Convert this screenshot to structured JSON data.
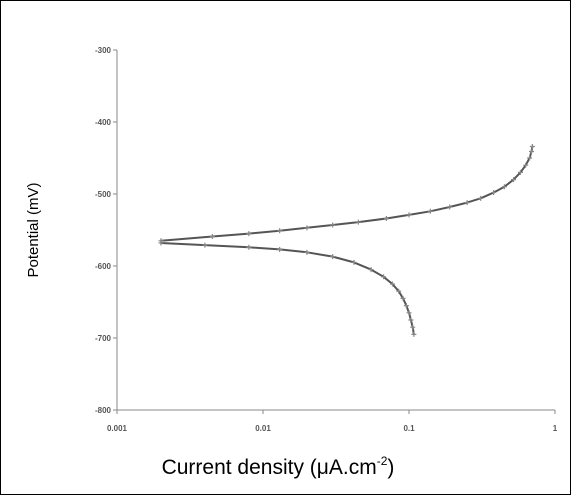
{
  "chart_data": {
    "type": "line",
    "title": "",
    "xlabel_main": "Current density (μA.cm",
    "xlabel_sup": "-2",
    "xlabel_close": ")",
    "ylabel": "Potential (mV)",
    "xscale": "log",
    "xlim": [
      0.001,
      1
    ],
    "ylim": [
      -800,
      -300
    ],
    "grid": false,
    "legend": "none",
    "x_ticks": [
      {
        "value": 0.001,
        "label": "0.001"
      },
      {
        "value": 0.01,
        "label": "0.01"
      },
      {
        "value": 0.1,
        "label": "0.1"
      },
      {
        "value": 1,
        "label": "1"
      }
    ],
    "y_ticks": [
      {
        "value": -300,
        "label": "-300"
      },
      {
        "value": -400,
        "label": "-400"
      },
      {
        "value": -500,
        "label": "-500"
      },
      {
        "value": -600,
        "label": "-600"
      },
      {
        "value": -700,
        "label": "-700"
      },
      {
        "value": -800,
        "label": "-800"
      }
    ],
    "series": [
      {
        "branch": "anodic",
        "x": [
          0.7,
          0.69,
          0.67,
          0.63,
          0.58,
          0.52,
          0.45,
          0.38,
          0.31,
          0.25,
          0.19,
          0.14,
          0.1,
          0.07,
          0.045,
          0.03,
          0.02,
          0.013,
          0.008,
          0.0045,
          0.002
        ],
        "y": [
          -434,
          -441,
          -450,
          -460,
          -470,
          -480,
          -490,
          -498,
          -506,
          -512,
          -518,
          -524,
          -529,
          -534,
          -539,
          -543,
          -547,
          -551,
          -555,
          -559,
          -565
        ]
      },
      {
        "branch": "cathodic",
        "x": [
          0.002,
          0.004,
          0.008,
          0.013,
          0.02,
          0.03,
          0.042,
          0.055,
          0.067,
          0.077,
          0.085,
          0.091,
          0.096,
          0.1,
          0.103,
          0.106,
          0.108
        ],
        "y": [
          -568,
          -571,
          -574,
          -577,
          -581,
          -587,
          -595,
          -605,
          -615,
          -625,
          -635,
          -645,
          -655,
          -665,
          -675,
          -685,
          -695
        ]
      }
    ],
    "line_color": "#555555",
    "marker_color": "#888888"
  }
}
